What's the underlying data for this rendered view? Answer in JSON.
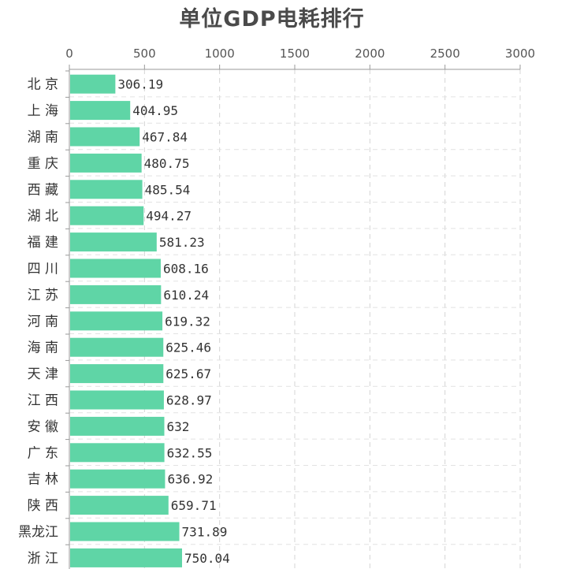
{
  "chart_data": {
    "type": "bar",
    "orientation": "horizontal",
    "title": "单位GDP电耗排行",
    "xlabel": "",
    "ylabel": "",
    "xlim": [
      0,
      3000
    ],
    "x_ticks": [
      "0",
      "500",
      "1000",
      "1500",
      "2000",
      "2500",
      "3000"
    ],
    "x_axis_position": "top",
    "grid": true,
    "bar_color": "#5fd5a6",
    "categories": [
      "北 京",
      "上 海",
      "湖 南",
      "重 庆",
      "西 藏",
      "湖 北",
      "福 建",
      "四 川",
      "江 苏",
      "河 南",
      "海 南",
      "天 津",
      "江 西",
      "安 徽",
      "广 东",
      "吉 林",
      "陕 西",
      "黑龙江",
      "浙 江"
    ],
    "values": [
      306.19,
      404.95,
      467.84,
      480.75,
      485.54,
      494.27,
      581.23,
      608.16,
      610.24,
      619.32,
      625.46,
      625.67,
      628.97,
      632,
      632.55,
      636.92,
      659.71,
      731.89,
      750.04
    ],
    "value_labels": [
      "306.19",
      "404.95",
      "467.84",
      "480.75",
      "485.54",
      "494.27",
      "581.23",
      "608.16",
      "610.24",
      "619.32",
      "625.46",
      "625.67",
      "628.97",
      "632",
      "632.55",
      "636.92",
      "659.71",
      "731.89",
      "750.04"
    ]
  }
}
